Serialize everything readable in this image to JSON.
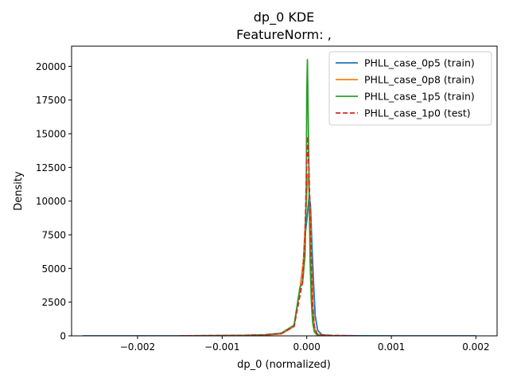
{
  "chart_data": {
    "type": "line",
    "title": "dp_0 KDE",
    "subtitle": "FeatureNorm: ,",
    "xlabel": "dp_0 (normalized)",
    "ylabel": "Density",
    "xlim": [
      -0.00278,
      0.00225
    ],
    "ylim": [
      0,
      21500
    ],
    "xticks": [
      -0.002,
      -0.001,
      0.0,
      0.001,
      0.002
    ],
    "xtick_labels": [
      "−0.002",
      "−0.001",
      "0.000",
      "0.001",
      "0.002"
    ],
    "yticks": [
      0,
      2500,
      5000,
      7500,
      10000,
      12500,
      15000,
      17500,
      20000
    ],
    "ytick_labels": [
      "0",
      "2500",
      "5000",
      "7500",
      "10000",
      "12500",
      "15000",
      "17500",
      "20000"
    ],
    "grid": false,
    "legend_position": "top-right",
    "series": [
      {
        "name": "PHLL_case_0p5 (train)",
        "color": "#1f77b4",
        "dash": "solid",
        "x": [
          -0.00265,
          -0.0015,
          -0.0008,
          -0.0005,
          -0.0003,
          -0.00015,
          -8e-05,
          -4e-05,
          -2e-05,
          0.0,
          1.5e-05,
          3e-05,
          4.5e-05,
          6e-05,
          8e-05,
          0.0001,
          0.00013,
          0.00018,
          0.0003,
          0.0006,
          0.001,
          0.002
        ],
        "y": [
          0,
          0,
          20,
          60,
          150,
          700,
          3500,
          5500,
          7500,
          8500,
          9500,
          10500,
          9600,
          7000,
          4000,
          1500,
          400,
          80,
          20,
          5,
          0,
          0
        ]
      },
      {
        "name": "PHLL_case_0p8 (train)",
        "color": "#ff7f0e",
        "dash": "solid",
        "x": [
          -0.0015,
          -0.0008,
          -0.0005,
          -0.0003,
          -0.00015,
          -8e-05,
          -4e-05,
          -2e-05,
          0.0,
          1e-05,
          2e-05,
          3.5e-05,
          5e-05,
          7e-05,
          9e-05,
          0.00012,
          0.00018,
          0.0004
        ],
        "y": [
          0,
          20,
          60,
          150,
          700,
          3400,
          5500,
          8000,
          10500,
          12000,
          11500,
          10000,
          7000,
          2500,
          600,
          150,
          30,
          0
        ]
      },
      {
        "name": "PHLL_case_1p5 (train)",
        "color": "#2ca02c",
        "dash": "solid",
        "x": [
          -0.0015,
          -0.0008,
          -0.0005,
          -0.0003,
          -0.00015,
          -8e-05,
          -5e-05,
          -2e-05,
          -5e-06,
          0.0,
          8e-06,
          1.8e-05,
          3e-05,
          4e-05,
          5.5e-05,
          7e-05,
          9e-05,
          0.00012,
          0.0002,
          0.0004
        ],
        "y": [
          0,
          30,
          80,
          200,
          800,
          3600,
          3900,
          6000,
          11000,
          18000,
          20500,
          16000,
          10000,
          5500,
          2500,
          1000,
          300,
          80,
          10,
          0
        ]
      },
      {
        "name": "PHLL_case_1p0 (test)",
        "color": "#d62728",
        "dash": "dashed",
        "x": [
          -0.0015,
          -0.0008,
          -0.0005,
          -0.0003,
          -0.00015,
          -8e-05,
          -5e-05,
          -2e-05,
          0.0,
          1e-05,
          2.5e-05,
          4e-05,
          5.5e-05,
          7e-05,
          9e-05,
          0.00012,
          0.0002,
          0.0004,
          0.0006
        ],
        "y": [
          0,
          30,
          70,
          180,
          700,
          3000,
          4000,
          7500,
          13000,
          14800,
          12500,
          9000,
          5500,
          2200,
          700,
          150,
          50,
          20,
          0
        ]
      }
    ]
  }
}
